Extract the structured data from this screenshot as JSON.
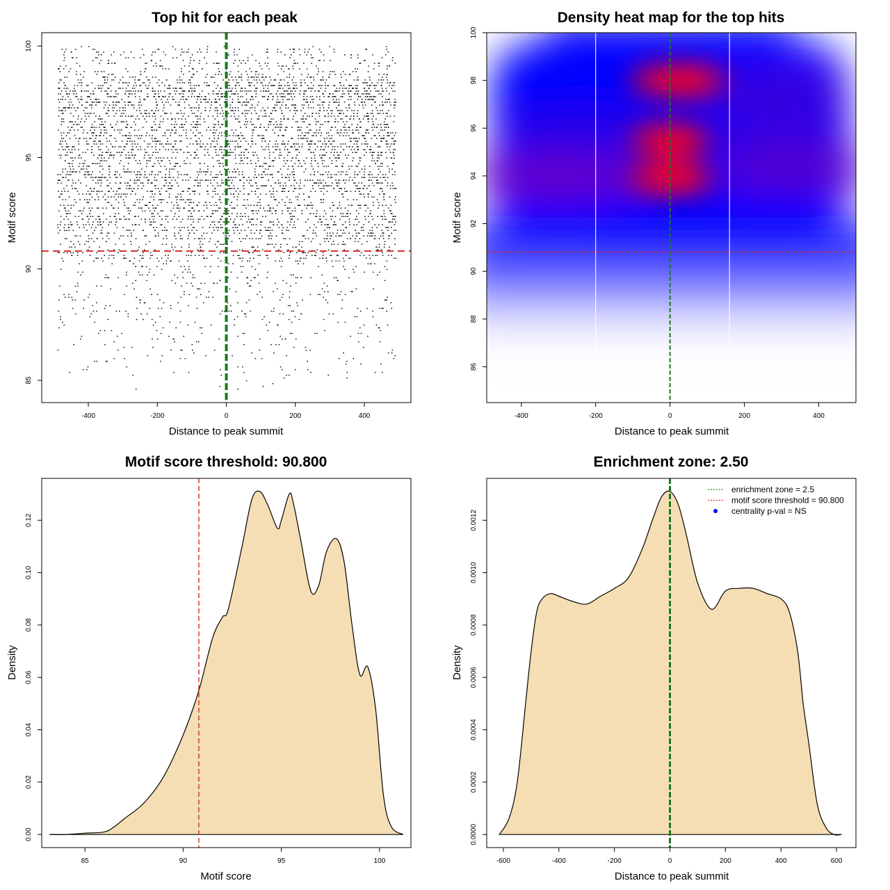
{
  "chart_data": [
    {
      "type": "scatter",
      "title": "Top hit for each peak",
      "xlabel": "Distance to peak summit",
      "ylabel": "Motif score",
      "xlim": [
        -535,
        535
      ],
      "ylim": [
        84.0,
        100.6
      ],
      "xticks": [
        -400,
        -200,
        0,
        200,
        400
      ],
      "xtick_labels": [
        "-400",
        "-200",
        "0",
        "200",
        "400"
      ],
      "yticks": [
        85,
        90,
        95,
        100
      ],
      "ytick_labels": [
        "85",
        "90",
        "95",
        "100"
      ],
      "points_description": "dense field of top-hit points, x from -490 to 490, score mostly 90.5-100 with sparse tail down to 84.5",
      "threshold_line": {
        "axis": "y",
        "value": 90.8,
        "color": "#d62728",
        "style": "dashed"
      },
      "center_line": {
        "axis": "x",
        "value": 0,
        "color": "#1a7a1a",
        "style": "dashed"
      }
    },
    {
      "type": "heatmap",
      "title": "Density heat map for the top hits",
      "xlabel": "Distance to peak summit",
      "ylabel": "Motif score",
      "xlim": [
        -493,
        500
      ],
      "ylim": [
        84.5,
        100.0
      ],
      "xticks": [
        -400,
        -200,
        0,
        200,
        400
      ],
      "xtick_labels": [
        "-400",
        "-200",
        "0",
        "200",
        "400"
      ],
      "yticks": [
        86,
        88,
        90,
        92,
        94,
        96,
        98,
        100
      ],
      "ytick_labels": [
        "86",
        "88",
        "90",
        "92",
        "94",
        "96",
        "98",
        "100"
      ],
      "colors": {
        "low": "#ffffff",
        "mid": "#0000ff",
        "high": "#ff0000"
      },
      "hotspots": [
        {
          "x": 20,
          "y": 98.0,
          "intensity": 1.0
        },
        {
          "x": 0,
          "y": 95.5,
          "intensity": 0.85
        },
        {
          "x": 0,
          "y": 93.9,
          "intensity": 0.9
        }
      ],
      "vertical_gridlines": [
        -200,
        160
      ],
      "threshold_line": {
        "axis": "y",
        "value": 90.8,
        "color": "#d62728",
        "style": "dashed"
      },
      "center_line": {
        "axis": "x",
        "value": 0,
        "color": "#1a7a1a",
        "style": "dashed"
      }
    },
    {
      "type": "area",
      "title": "Motif score threshold: 90.800",
      "xlabel": "Motif score",
      "ylabel": "Density",
      "xlim": [
        82.8,
        101.6
      ],
      "ylim": [
        -0.005,
        0.136
      ],
      "xticks": [
        85,
        90,
        95,
        100
      ],
      "xtick_labels": [
        "85",
        "90",
        "95",
        "100"
      ],
      "yticks": [
        0.0,
        0.02,
        0.04,
        0.06,
        0.08,
        0.1,
        0.12
      ],
      "ytick_labels": [
        "0.00",
        "0.02",
        "0.04",
        "0.06",
        "0.08",
        "0.10",
        "0.12"
      ],
      "fill": "#f5deb3",
      "x": [
        83.2,
        84.0,
        85.0,
        86.0,
        86.5,
        87.0,
        88.0,
        89.0,
        90.0,
        90.8,
        91.5,
        92.0,
        92.3,
        93.0,
        93.5,
        93.9,
        94.3,
        94.8,
        95.0,
        95.4,
        95.6,
        96.0,
        96.5,
        96.9,
        97.3,
        97.8,
        98.2,
        98.6,
        99.0,
        99.4,
        99.8,
        100.2,
        100.6,
        101.2
      ],
      "y": [
        0.0,
        0.0,
        0.0005,
        0.001,
        0.003,
        0.006,
        0.012,
        0.022,
        0.038,
        0.055,
        0.075,
        0.083,
        0.086,
        0.11,
        0.128,
        0.131,
        0.126,
        0.117,
        0.12,
        0.13,
        0.127,
        0.112,
        0.093,
        0.095,
        0.108,
        0.113,
        0.104,
        0.08,
        0.061,
        0.064,
        0.048,
        0.015,
        0.003,
        0.0
      ],
      "threshold_line": {
        "axis": "x",
        "value": 90.8,
        "color": "#d62728",
        "style": "dashed"
      }
    },
    {
      "type": "area",
      "title": "Enrichment zone: 2.50",
      "xlabel": "Distance to peak summit",
      "ylabel": "Density",
      "xlim": [
        -660,
        670
      ],
      "ylim": [
        -5e-05,
        0.00136
      ],
      "xticks": [
        -600,
        -400,
        -200,
        0,
        200,
        400,
        600
      ],
      "xtick_labels": [
        "-600",
        "-400",
        "-200",
        "0",
        "200",
        "400",
        "600"
      ],
      "yticks": [
        0.0,
        0.0002,
        0.0004,
        0.0006,
        0.0008,
        0.001,
        0.0012
      ],
      "ytick_labels": [
        "0.0000",
        "0.0002",
        "0.0004",
        "0.0006",
        "0.0008",
        "0.0010",
        "0.0012"
      ],
      "fill": "#f5deb3",
      "x": [
        -615,
        -580,
        -550,
        -520,
        -500,
        -480,
        -460,
        -430,
        -400,
        -350,
        -300,
        -250,
        -200,
        -150,
        -100,
        -60,
        -30,
        0,
        30,
        60,
        100,
        150,
        200,
        250,
        300,
        350,
        400,
        430,
        460,
        480,
        500,
        530,
        560,
        590,
        618
      ],
      "y": [
        0.0,
        6e-05,
        0.0002,
        0.0005,
        0.0007,
        0.00085,
        0.0009,
        0.00092,
        0.00091,
        0.00089,
        0.00088,
        0.00091,
        0.00094,
        0.00098,
        0.00109,
        0.00121,
        0.00129,
        0.00131,
        0.00126,
        0.00114,
        0.00096,
        0.00086,
        0.00093,
        0.00094,
        0.00094,
        0.00092,
        0.0009,
        0.00085,
        0.0007,
        0.0005,
        0.00035,
        0.00012,
        3e-05,
        0.0,
        0.0
      ],
      "center_line": {
        "axis": "x",
        "value": 0,
        "color": "#1a7a1a",
        "style": "dashed"
      },
      "legend": {
        "position": "top-right",
        "entries": [
          {
            "label": "enrichment zone = 2.5",
            "color": "#1a7a1a",
            "marker": "dotted-line"
          },
          {
            "label": "motif score threshold = 90.800",
            "color": "#d62728",
            "marker": "dotted-line"
          },
          {
            "label": "centrality p-val = NS",
            "color": "#0000ff",
            "marker": "point"
          }
        ]
      }
    }
  ]
}
